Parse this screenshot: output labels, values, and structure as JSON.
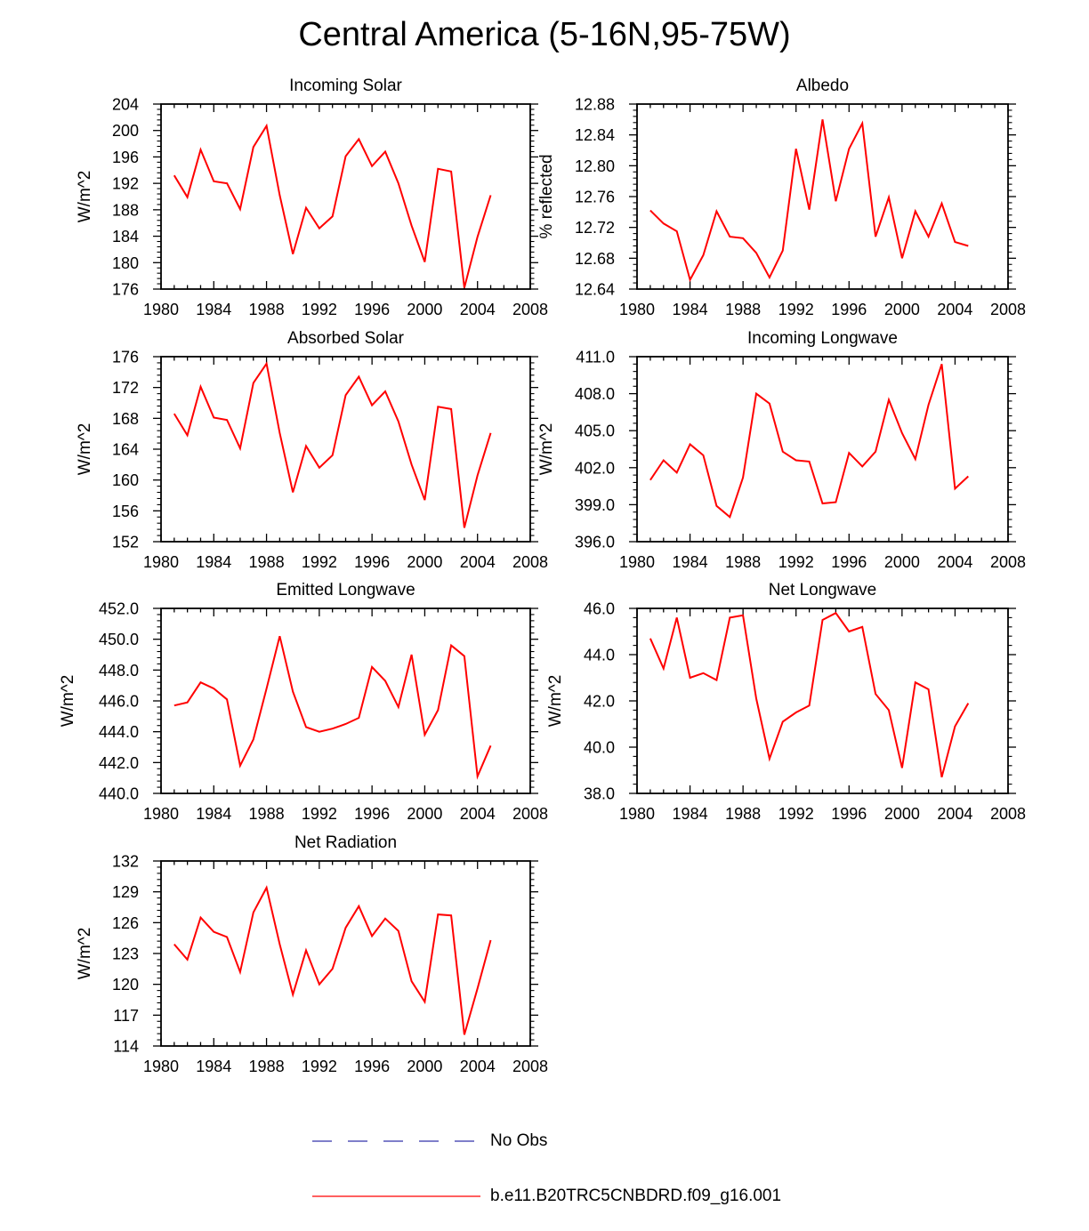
{
  "figure": {
    "title": "Central America (5-16N,95-75W)"
  },
  "legend": {
    "entries": [
      {
        "label": "No Obs",
        "color": "#3333aa",
        "style": "dashed"
      },
      {
        "label": "b.e11.B20TRC5CNBDRD.f09_g16.001",
        "color": "#ff0000",
        "style": "solid"
      }
    ]
  },
  "chart_data": [
    {
      "type": "line",
      "title": "Incoming Solar",
      "ylabel": "W/m^2",
      "xlim": [
        1980,
        2008
      ],
      "xticks": [
        1980,
        1984,
        1988,
        1992,
        1996,
        2000,
        2004,
        2008
      ],
      "ylim": [
        176,
        204
      ],
      "yticks": [
        "204",
        "200",
        "196",
        "192",
        "188",
        "184",
        "180",
        "176"
      ],
      "x": [
        1981,
        1982,
        1983,
        1984,
        1985,
        1986,
        1987,
        1988,
        1989,
        1990,
        1991,
        1992,
        1993,
        1994,
        1995,
        1996,
        1997,
        1998,
        1999,
        2000,
        2001,
        2002,
        2003,
        2004,
        2005
      ],
      "series": [
        {
          "name": "b.e11.B20TRC5CNBDRD.f09_g16.001",
          "color": "#ff0000",
          "values": [
            193.2,
            189.9,
            197.1,
            192.3,
            192.0,
            188.1,
            197.5,
            200.7,
            190.2,
            181.3,
            188.3,
            185.2,
            187.0,
            196.1,
            198.7,
            194.6,
            196.8,
            192.0,
            185.6,
            180.1,
            194.2,
            193.8,
            176.2,
            183.9,
            190.2
          ]
        }
      ]
    },
    {
      "type": "line",
      "title": "Albedo",
      "ylabel": "% reflected",
      "xlim": [
        1980,
        2008
      ],
      "xticks": [
        1980,
        1984,
        1988,
        1992,
        1996,
        2000,
        2004,
        2008
      ],
      "ylim": [
        12.64,
        12.88
      ],
      "yticks": [
        "12.88",
        "12.84",
        "12.80",
        "12.76",
        "12.72",
        "12.68",
        "12.64"
      ],
      "x": [
        1981,
        1982,
        1983,
        1984,
        1985,
        1986,
        1987,
        1988,
        1989,
        1990,
        1991,
        1992,
        1993,
        1994,
        1995,
        1996,
        1997,
        1998,
        1999,
        2000,
        2001,
        2002,
        2003,
        2004,
        2005
      ],
      "series": [
        {
          "name": "b.e11.B20TRC5CNBDRD.f09_g16.001",
          "color": "#ff0000",
          "values": [
            12.742,
            12.725,
            12.715,
            12.652,
            12.684,
            12.741,
            12.708,
            12.706,
            12.687,
            12.655,
            12.69,
            12.822,
            12.743,
            12.86,
            12.754,
            12.822,
            12.855,
            12.708,
            12.759,
            12.68,
            12.741,
            12.708,
            12.751,
            12.701,
            12.696
          ]
        }
      ]
    },
    {
      "type": "line",
      "title": "Absorbed Solar",
      "ylabel": "W/m^2",
      "xlim": [
        1980,
        2008
      ],
      "xticks": [
        1980,
        1984,
        1988,
        1992,
        1996,
        2000,
        2004,
        2008
      ],
      "ylim": [
        152,
        176
      ],
      "yticks": [
        "176",
        "172",
        "168",
        "164",
        "160",
        "156",
        "152"
      ],
      "x": [
        1981,
        1982,
        1983,
        1984,
        1985,
        1986,
        1987,
        1988,
        1989,
        1990,
        1991,
        1992,
        1993,
        1994,
        1995,
        1996,
        1997,
        1998,
        1999,
        2000,
        2001,
        2002,
        2003,
        2004,
        2005
      ],
      "series": [
        {
          "name": "b.e11.B20TRC5CNBDRD.f09_g16.001",
          "color": "#ff0000",
          "values": [
            168.6,
            165.8,
            172.1,
            168.1,
            167.8,
            164.1,
            172.6,
            175.1,
            166.1,
            158.4,
            164.4,
            161.6,
            163.2,
            171.0,
            173.4,
            169.7,
            171.5,
            167.6,
            162.0,
            157.4,
            169.5,
            169.2,
            153.8,
            160.6,
            166.1
          ]
        }
      ]
    },
    {
      "type": "line",
      "title": "Incoming Longwave",
      "ylabel": "W/m^2",
      "xlim": [
        1980,
        2008
      ],
      "xticks": [
        1980,
        1984,
        1988,
        1992,
        1996,
        2000,
        2004,
        2008
      ],
      "ylim": [
        396.0,
        411.0
      ],
      "yticks": [
        "411.0",
        "408.0",
        "405.0",
        "402.0",
        "399.0",
        "396.0"
      ],
      "x": [
        1981,
        1982,
        1983,
        1984,
        1985,
        1986,
        1987,
        1988,
        1989,
        1990,
        1991,
        1992,
        1993,
        1994,
        1995,
        1996,
        1997,
        1998,
        1999,
        2000,
        2001,
        2002,
        2003,
        2004,
        2005
      ],
      "series": [
        {
          "name": "b.e11.B20TRC5CNBDRD.f09_g16.001",
          "color": "#ff0000",
          "values": [
            401.0,
            402.6,
            401.6,
            403.9,
            403.0,
            398.9,
            398.0,
            401.2,
            408.0,
            407.2,
            403.3,
            402.6,
            402.5,
            399.1,
            399.2,
            403.2,
            402.1,
            403.3,
            407.5,
            404.8,
            402.7,
            407.1,
            410.4,
            400.3,
            401.3
          ]
        }
      ]
    },
    {
      "type": "line",
      "title": "Emitted Longwave",
      "ylabel": "W/m^2",
      "xlim": [
        1980,
        2008
      ],
      "xticks": [
        1980,
        1984,
        1988,
        1992,
        1996,
        2000,
        2004,
        2008
      ],
      "ylim": [
        440.0,
        452.0
      ],
      "yticks": [
        "452.0",
        "450.0",
        "448.0",
        "446.0",
        "444.0",
        "442.0",
        "440.0"
      ],
      "x": [
        1981,
        1982,
        1983,
        1984,
        1985,
        1986,
        1987,
        1988,
        1989,
        1990,
        1991,
        1992,
        1993,
        1994,
        1995,
        1996,
        1997,
        1998,
        1999,
        2000,
        2001,
        2002,
        2003,
        2004,
        2005
      ],
      "series": [
        {
          "name": "b.e11.B20TRC5CNBDRD.f09_g16.001",
          "color": "#ff0000",
          "values": [
            445.7,
            445.9,
            447.2,
            446.8,
            446.1,
            441.8,
            443.5,
            446.8,
            450.2,
            446.6,
            444.3,
            444.0,
            444.2,
            444.5,
            444.9,
            448.2,
            447.3,
            445.6,
            449.0,
            443.8,
            445.4,
            449.6,
            448.9,
            441.1,
            443.1
          ]
        }
      ]
    },
    {
      "type": "line",
      "title": "Net Longwave",
      "ylabel": "W/m^2",
      "xlim": [
        1980,
        2008
      ],
      "xticks": [
        1980,
        1984,
        1988,
        1992,
        1996,
        2000,
        2004,
        2008
      ],
      "ylim": [
        38.0,
        46.0
      ],
      "yticks": [
        "46.0",
        "44.0",
        "42.0",
        "40.0",
        "38.0"
      ],
      "x": [
        1981,
        1982,
        1983,
        1984,
        1985,
        1986,
        1987,
        1988,
        1989,
        1990,
        1991,
        1992,
        1993,
        1994,
        1995,
        1996,
        1997,
        1998,
        1999,
        2000,
        2001,
        2002,
        2003,
        2004,
        2005
      ],
      "series": [
        {
          "name": "b.e11.B20TRC5CNBDRD.f09_g16.001",
          "color": "#ff0000",
          "values": [
            44.7,
            43.4,
            45.6,
            43.0,
            43.2,
            42.9,
            45.6,
            45.7,
            42.1,
            39.5,
            41.1,
            41.5,
            41.8,
            45.5,
            45.8,
            45.0,
            45.2,
            42.3,
            41.6,
            39.1,
            42.8,
            42.5,
            38.7,
            40.9,
            41.9
          ]
        }
      ]
    },
    {
      "type": "line",
      "title": "Net Radiation",
      "ylabel": "W/m^2",
      "xlim": [
        1980,
        2008
      ],
      "xticks": [
        1980,
        1984,
        1988,
        1992,
        1996,
        2000,
        2004,
        2008
      ],
      "ylim": [
        114,
        132
      ],
      "yticks": [
        "132",
        "129",
        "126",
        "123",
        "120",
        "117",
        "114"
      ],
      "x": [
        1981,
        1982,
        1983,
        1984,
        1985,
        1986,
        1987,
        1988,
        1989,
        1990,
        1991,
        1992,
        1993,
        1994,
        1995,
        1996,
        1997,
        1998,
        1999,
        2000,
        2001,
        2002,
        2003,
        2004,
        2005
      ],
      "series": [
        {
          "name": "b.e11.B20TRC5CNBDRD.f09_g16.001",
          "color": "#ff0000",
          "values": [
            123.9,
            122.4,
            126.5,
            125.1,
            124.6,
            121.2,
            127.0,
            129.4,
            123.9,
            119.0,
            123.3,
            120.0,
            121.5,
            125.5,
            127.6,
            124.7,
            126.4,
            125.2,
            120.3,
            118.3,
            126.8,
            126.7,
            115.1,
            119.6,
            124.3
          ]
        }
      ]
    }
  ]
}
